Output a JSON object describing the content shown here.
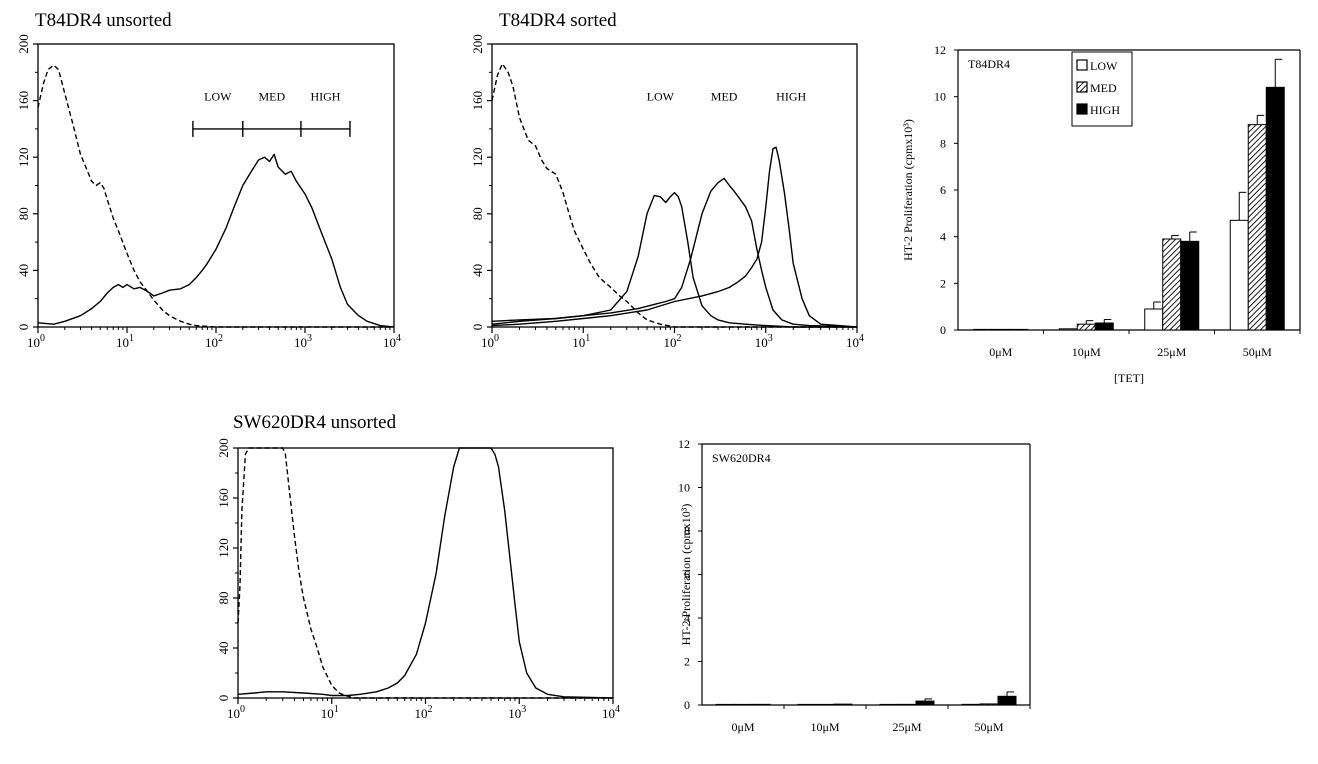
{
  "chart_data": [
    {
      "type": "line",
      "title": "T84DR4 unsorted",
      "x_scale": "log",
      "xlim": [
        1,
        10000
      ],
      "ylim": [
        0,
        200
      ],
      "x_ticks": [
        "10^0",
        "10^1",
        "10^2",
        "10^3",
        "10^4"
      ],
      "y_ticks": [
        "0",
        "40",
        "80",
        "120",
        "160",
        "200"
      ],
      "gates": [
        "LOW",
        "MED",
        "HIGH"
      ],
      "gate_bounds": [
        55,
        200,
        900,
        3200
      ],
      "series": [
        {
          "style": "dashed",
          "x": [
            1,
            1.15,
            1.3,
            1.5,
            1.7,
            2,
            2.5,
            3,
            3.5,
            4,
            4.5,
            5,
            5.5,
            6,
            7,
            8,
            10,
            12,
            14,
            17,
            20,
            25,
            30,
            40,
            50,
            60,
            100,
            1000,
            10000
          ],
          "y": [
            155,
            172,
            182,
            185,
            182,
            165,
            142,
            122,
            112,
            103,
            100,
            102,
            98,
            90,
            77,
            68,
            52,
            40,
            32,
            25,
            19,
            12,
            8,
            4,
            2,
            1,
            0,
            0,
            0
          ]
        },
        {
          "style": "solid",
          "x": [
            1,
            1.5,
            2,
            3,
            4,
            5,
            6,
            7,
            8,
            9,
            10,
            12,
            14,
            16,
            18,
            20,
            25,
            30,
            40,
            50,
            60,
            70,
            80,
            100,
            130,
            160,
            200,
            250,
            300,
            350,
            400,
            450,
            500,
            600,
            700,
            800,
            1000,
            1200,
            1500,
            2000,
            2500,
            3000,
            4000,
            5000,
            7000,
            10000
          ],
          "y": [
            3,
            2,
            4,
            8,
            13,
            18,
            24,
            28,
            30,
            28,
            30,
            27,
            28,
            26,
            24,
            22,
            24,
            26,
            27,
            30,
            35,
            40,
            45,
            55,
            70,
            85,
            100,
            110,
            118,
            120,
            117,
            122,
            113,
            108,
            110,
            103,
            94,
            84,
            68,
            48,
            28,
            16,
            8,
            4,
            1,
            0
          ]
        }
      ]
    },
    {
      "type": "line",
      "title": "T84DR4 sorted",
      "x_scale": "log",
      "xlim": [
        1,
        10000
      ],
      "ylim": [
        0,
        200
      ],
      "x_ticks": [
        "10^0",
        "10^1",
        "10^2",
        "10^3",
        "10^4"
      ],
      "y_ticks": [
        "0",
        "40",
        "80",
        "120",
        "160",
        "200"
      ],
      "gates": [
        "LOW",
        "MED",
        "HIGH"
      ],
      "series": [
        {
          "style": "dashed",
          "x": [
            1,
            1.15,
            1.3,
            1.5,
            1.7,
            2,
            2.5,
            3,
            3.5,
            4,
            5,
            6,
            7,
            8,
            10,
            12,
            15,
            20,
            25,
            30,
            40,
            50,
            70,
            100,
            200,
            1000,
            10000
          ],
          "y": [
            160,
            178,
            186,
            180,
            170,
            148,
            132,
            128,
            118,
            112,
            108,
            95,
            80,
            68,
            55,
            45,
            35,
            28,
            22,
            18,
            10,
            5,
            2,
            0,
            0,
            0,
            0
          ]
        },
        {
          "style": "solid",
          "x": [
            1,
            2,
            5,
            10,
            20,
            30,
            40,
            50,
            60,
            70,
            80,
            90,
            100,
            110,
            120,
            140,
            160,
            200,
            250,
            300,
            400,
            600,
            1000,
            2000,
            10000
          ],
          "y": [
            4,
            5,
            6,
            8,
            12,
            25,
            50,
            80,
            93,
            92,
            88,
            92,
            95,
            92,
            85,
            60,
            35,
            15,
            8,
            5,
            3,
            2,
            1,
            0,
            0
          ]
        },
        {
          "style": "solid",
          "x": [
            1,
            2,
            5,
            10,
            20,
            40,
            60,
            80,
            100,
            120,
            150,
            200,
            250,
            300,
            350,
            400,
            450,
            500,
            600,
            700,
            800,
            900,
            1000,
            1200,
            1500,
            2000,
            3000,
            10000
          ],
          "y": [
            2,
            4,
            6,
            8,
            10,
            13,
            16,
            18,
            20,
            28,
            48,
            80,
            96,
            102,
            105,
            100,
            96,
            92,
            85,
            75,
            55,
            40,
            28,
            12,
            5,
            2,
            1,
            0
          ]
        },
        {
          "style": "solid",
          "x": [
            1,
            2,
            5,
            10,
            20,
            50,
            100,
            200,
            300,
            400,
            500,
            600,
            700,
            800,
            900,
            1000,
            1100,
            1200,
            1300,
            1400,
            1600,
            1800,
            2000,
            2500,
            3000,
            4000,
            10000
          ],
          "y": [
            1,
            2,
            4,
            6,
            8,
            12,
            18,
            22,
            25,
            28,
            32,
            36,
            42,
            48,
            60,
            85,
            110,
            126,
            127,
            118,
            95,
            70,
            45,
            20,
            8,
            2,
            0
          ]
        }
      ]
    },
    {
      "type": "bar",
      "label": "T84DR4",
      "categories": [
        "0μM",
        "10μM",
        "25μM",
        "50μM"
      ],
      "xlabel": "[TET]",
      "ylabel": "HT-2 Proliferation (cpmx10³)",
      "ylim": [
        0,
        12
      ],
      "y_ticks": [
        "0",
        "2",
        "4",
        "6",
        "8",
        "10",
        "12"
      ],
      "legend_position": "top-left",
      "series": [
        {
          "name": "LOW",
          "fill": "white",
          "values": [
            0.02,
            0.05,
            0.9,
            4.7
          ],
          "errors": [
            0,
            0,
            0.3,
            1.2
          ]
        },
        {
          "name": "MED",
          "fill": "hatched",
          "values": [
            0.02,
            0.25,
            3.9,
            8.8
          ],
          "errors": [
            0,
            0.15,
            0.15,
            0.4
          ]
        },
        {
          "name": "HIGH",
          "fill": "black",
          "values": [
            0.02,
            0.3,
            3.8,
            10.4
          ],
          "errors": [
            0,
            0.15,
            0.4,
            1.2
          ]
        }
      ]
    },
    {
      "type": "line",
      "title": "SW620DR4 unsorted",
      "x_scale": "log",
      "xlim": [
        1,
        10000
      ],
      "ylim": [
        0,
        200
      ],
      "x_ticks": [
        "10^0",
        "10^1",
        "10^2",
        "10^3",
        "10^4"
      ],
      "y_ticks": [
        "0",
        "40",
        "80",
        "120",
        "160",
        "200"
      ],
      "series": [
        {
          "style": "dashed",
          "x": [
            1,
            1.05,
            1.1,
            1.2,
            1.3,
            1.4,
            1.5,
            1.6,
            3,
            3.2,
            3.6,
            4,
            4.5,
            5,
            6,
            7,
            8,
            10,
            12,
            14,
            17,
            20,
            100,
            1000,
            10000
          ],
          "y": [
            60,
            90,
            150,
            195,
            200,
            200,
            200,
            200,
            200,
            195,
            160,
            130,
            100,
            80,
            55,
            40,
            25,
            10,
            4,
            2,
            0,
            0,
            0,
            0,
            0
          ]
        },
        {
          "style": "solid",
          "x": [
            1,
            1.5,
            2,
            3,
            5,
            8,
            10,
            15,
            20,
            30,
            40,
            50,
            60,
            80,
            100,
            130,
            160,
            200,
            230,
            260,
            300,
            500,
            550,
            600,
            700,
            800,
            900,
            1000,
            1200,
            1500,
            2000,
            3000,
            10000
          ],
          "y": [
            3,
            4,
            5,
            5,
            4,
            3,
            2,
            2,
            3,
            5,
            8,
            12,
            18,
            35,
            60,
            100,
            145,
            185,
            200,
            200,
            200,
            200,
            195,
            185,
            150,
            110,
            75,
            45,
            20,
            8,
            3,
            1,
            0
          ]
        }
      ]
    },
    {
      "type": "bar",
      "label": "SW620DR4",
      "categories": [
        "0μM",
        "10μM",
        "25μM",
        "50μM"
      ],
      "ylabel": "HT-2 Proliferation (cpmx10³)",
      "ylim": [
        0,
        12
      ],
      "y_ticks": [
        "0",
        "2",
        "4",
        "6",
        "8",
        "10",
        "12"
      ],
      "series": [
        {
          "fill": "white",
          "values": [
            0.01,
            0.01,
            0.02,
            0.03
          ],
          "errors": [
            0,
            0,
            0,
            0
          ]
        },
        {
          "fill": "hatched",
          "values": [
            0.01,
            0.01,
            0.03,
            0.05
          ],
          "errors": [
            0,
            0,
            0,
            0
          ]
        },
        {
          "fill": "black",
          "values": [
            0.03,
            0.04,
            0.18,
            0.4
          ],
          "errors": [
            0,
            0,
            0.1,
            0.2
          ]
        }
      ]
    }
  ]
}
